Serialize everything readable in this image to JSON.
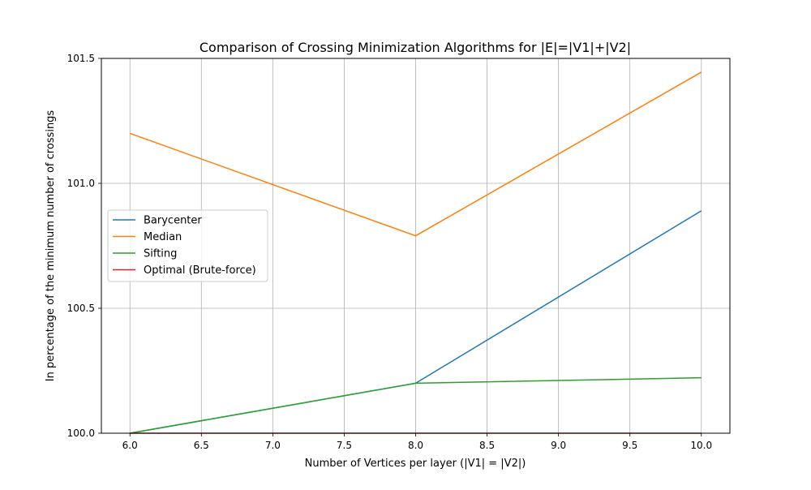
{
  "chart_data": {
    "type": "line",
    "title": "Comparison of Crossing Minimization Algorithms for |E|=|V1|+|V2|",
    "xlabel": "Number of Vertices per layer (|V1| = |V2|)",
    "ylabel": "In percentage of the minimum number of crossings",
    "xlim": [
      5.8,
      10.2
    ],
    "ylim": [
      100.0,
      101.5
    ],
    "xticks": [
      6.0,
      6.5,
      7.0,
      7.5,
      8.0,
      8.5,
      9.0,
      9.5,
      10.0
    ],
    "xtick_labels": [
      "6.0",
      "6.5",
      "7.0",
      "7.5",
      "8.0",
      "8.5",
      "9.0",
      "9.5",
      "10.0"
    ],
    "yticks": [
      100.0,
      100.5,
      101.0,
      101.5
    ],
    "ytick_labels": [
      "100.0",
      "100.5",
      "101.0",
      "101.5"
    ],
    "grid": true,
    "legend_position": "center-left",
    "x": [
      6,
      8,
      10
    ],
    "series": [
      {
        "name": "Barycenter",
        "color": "#1f77b4",
        "values": [
          100.0,
          100.2,
          100.89
        ]
      },
      {
        "name": "Median",
        "color": "#ff7f0e",
        "values": [
          101.2,
          100.79,
          101.445
        ]
      },
      {
        "name": "Sifting",
        "color": "#2ca02c",
        "values": [
          100.0,
          100.2,
          100.222
        ]
      },
      {
        "name": "Optimal (Brute-force)",
        "color": "#d62728",
        "values": [
          100.0,
          100.0,
          100.0
        ]
      }
    ]
  }
}
